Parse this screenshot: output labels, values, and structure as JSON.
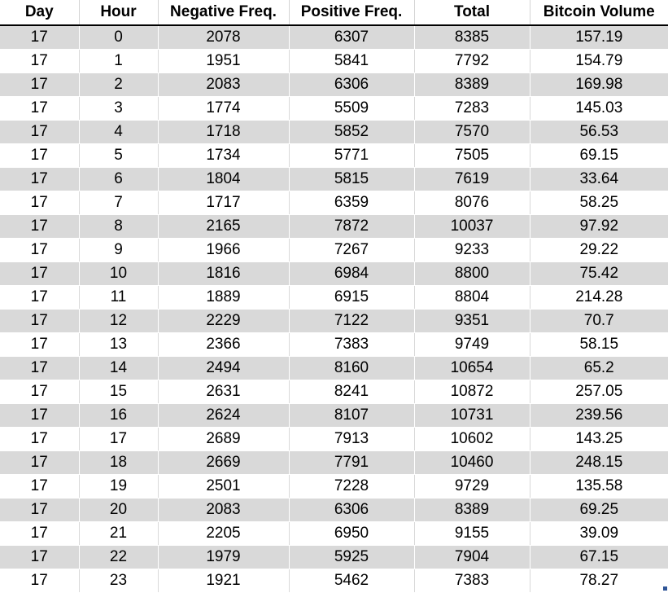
{
  "table": {
    "headers": [
      "Day",
      "Hour",
      "Negative Freq.",
      "Positive Freq.",
      "Total",
      "Bitcoin Volume"
    ],
    "rows": [
      [
        "17",
        "0",
        "2078",
        "6307",
        "8385",
        "157.19"
      ],
      [
        "17",
        "1",
        "1951",
        "5841",
        "7792",
        "154.79"
      ],
      [
        "17",
        "2",
        "2083",
        "6306",
        "8389",
        "169.98"
      ],
      [
        "17",
        "3",
        "1774",
        "5509",
        "7283",
        "145.03"
      ],
      [
        "17",
        "4",
        "1718",
        "5852",
        "7570",
        "56.53"
      ],
      [
        "17",
        "5",
        "1734",
        "5771",
        "7505",
        "69.15"
      ],
      [
        "17",
        "6",
        "1804",
        "5815",
        "7619",
        "33.64"
      ],
      [
        "17",
        "7",
        "1717",
        "6359",
        "8076",
        "58.25"
      ],
      [
        "17",
        "8",
        "2165",
        "7872",
        "10037",
        "97.92"
      ],
      [
        "17",
        "9",
        "1966",
        "7267",
        "9233",
        "29.22"
      ],
      [
        "17",
        "10",
        "1816",
        "6984",
        "8800",
        "75.42"
      ],
      [
        "17",
        "11",
        "1889",
        "6915",
        "8804",
        "214.28"
      ],
      [
        "17",
        "12",
        "2229",
        "7122",
        "9351",
        "70.7"
      ],
      [
        "17",
        "13",
        "2366",
        "7383",
        "9749",
        "58.15"
      ],
      [
        "17",
        "14",
        "2494",
        "8160",
        "10654",
        "65.2"
      ],
      [
        "17",
        "15",
        "2631",
        "8241",
        "10872",
        "257.05"
      ],
      [
        "17",
        "16",
        "2624",
        "8107",
        "10731",
        "239.56"
      ],
      [
        "17",
        "17",
        "2689",
        "7913",
        "10602",
        "143.25"
      ],
      [
        "17",
        "18",
        "2669",
        "7791",
        "10460",
        "248.15"
      ],
      [
        "17",
        "19",
        "2501",
        "7228",
        "9729",
        "135.58"
      ],
      [
        "17",
        "20",
        "2083",
        "6306",
        "8389",
        "69.25"
      ],
      [
        "17",
        "21",
        "2205",
        "6950",
        "9155",
        "39.09"
      ],
      [
        "17",
        "22",
        "1979",
        "5925",
        "7904",
        "67.15"
      ],
      [
        "17",
        "23",
        "1921",
        "5462",
        "7383",
        "78.27"
      ]
    ]
  },
  "colors": {
    "band": "#d9d9d9",
    "header_rule": "#000000",
    "corner_mark": "#2f5597"
  }
}
